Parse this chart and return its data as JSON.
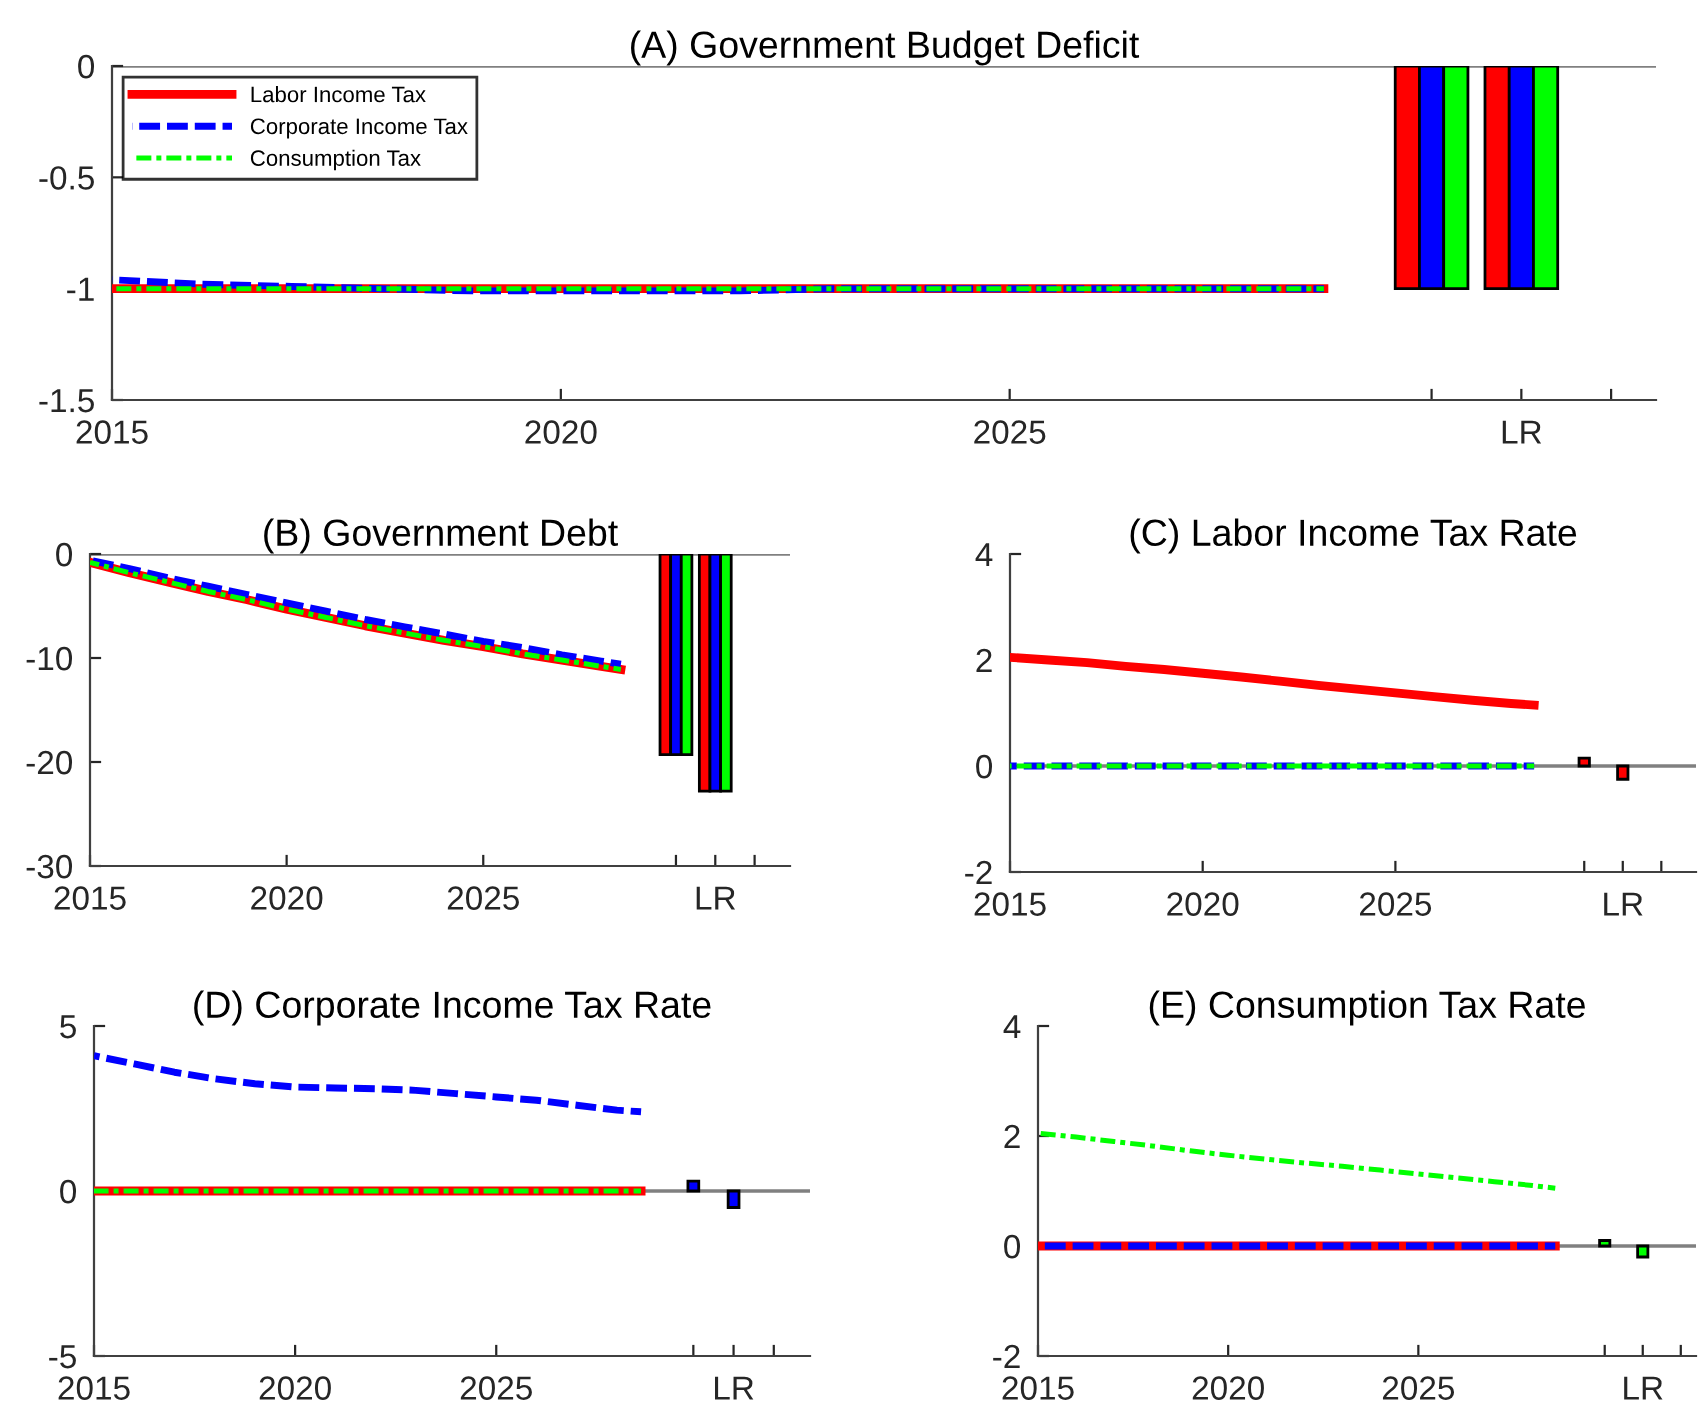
{
  "chart_data": [
    {
      "type": "line",
      "title": "(A) Government Budget Deficit",
      "xlim": [
        2015,
        2032.2
      ],
      "xticks": [
        2015,
        2020,
        2025,
        {
          "value": 2029.7,
          "label": null
        },
        {
          "value": 2030.7,
          "label": "LR"
        },
        {
          "value": 2031.7,
          "label": null
        }
      ],
      "ylim": [
        -1.5,
        0
      ],
      "yticks": [
        -1.5,
        -1,
        -0.5,
        0
      ],
      "legend": "top left",
      "grid": false,
      "ref_lines": [
        {
          "axis": "y",
          "value": 0,
          "color": "#808080"
        }
      ],
      "series": [
        {
          "name": "Labor Income Tax",
          "color": "#ff0000",
          "line_style": "solid",
          "x": [
            2015,
            2016,
            2017,
            2018,
            2019,
            2020,
            2021,
            2022,
            2023,
            2024,
            2025,
            2026,
            2027,
            2028,
            2028.5
          ],
          "values": [
            -1,
            -1,
            -1,
            -1,
            -1,
            -1,
            -1,
            -1,
            -1,
            -1,
            -1,
            -1,
            -1,
            -1,
            -1
          ]
        },
        {
          "name": "Corporate Income Tax",
          "color": "#0000ff",
          "line_style": "dashed",
          "x": [
            2015,
            2016,
            2017,
            2018,
            2019,
            2020,
            2021,
            2022,
            2023,
            2024,
            2025,
            2026,
            2027,
            2028,
            2028.5
          ],
          "values": [
            -0.96,
            -0.98,
            -0.99,
            -1,
            -1.01,
            -1.01,
            -1.01,
            -1.01,
            -1,
            -1,
            -1,
            -1,
            -1,
            -1,
            -1
          ]
        },
        {
          "name": "Consumption Tax",
          "color": "#00ff00",
          "line_style": "dashdot",
          "x": [
            2015,
            2016,
            2017,
            2018,
            2019,
            2020,
            2021,
            2022,
            2023,
            2024,
            2025,
            2026,
            2027,
            2028,
            2028.5
          ],
          "values": [
            -1,
            -1,
            -1,
            -1,
            -1,
            -1,
            -1,
            -1,
            -1,
            -1,
            -1,
            -1,
            -1,
            -1,
            -1
          ]
        },
        {
          "type": "bar",
          "color": "#ff0000",
          "x": [
            2029.43,
            2030.43
          ],
          "values": [
            -1,
            -1
          ]
        },
        {
          "type": "bar",
          "color": "#0000ff",
          "x": [
            2029.7,
            2030.7
          ],
          "values": [
            -1,
            -1
          ]
        },
        {
          "type": "bar",
          "color": "#00ff00",
          "x": [
            2029.97,
            2030.97
          ],
          "values": [
            -1,
            -1
          ]
        }
      ]
    },
    {
      "type": "line",
      "title": "(B) Government Debt",
      "xlim": [
        2015,
        2032.8
      ],
      "xticks": [
        2015,
        2020,
        2025,
        {
          "value": 2029.9,
          "label": null
        },
        {
          "value": 2030.9,
          "label": "LR"
        },
        {
          "value": 2031.9,
          "label": null
        }
      ],
      "ylim": [
        -30,
        0
      ],
      "yticks": [
        -30,
        -20,
        -10,
        0
      ],
      "grid": false,
      "ref_lines": [
        {
          "axis": "y",
          "value": 0,
          "color": "#808080"
        }
      ],
      "series": [
        {
          "color": "#ff0000",
          "line_style": "solid",
          "x": [
            2015,
            2016,
            2017,
            2018,
            2019,
            2020,
            2021,
            2022,
            2023,
            2024,
            2025,
            2026,
            2027,
            2028,
            2028.5
          ],
          "values": [
            -0.8,
            -1.8,
            -2.7,
            -3.6,
            -4.4,
            -5.3,
            -6.1,
            -6.9,
            -7.6,
            -8.3,
            -8.9,
            -9.6,
            -10.2,
            -10.8,
            -11.1
          ]
        },
        {
          "color": "#0000ff",
          "line_style": "dashed",
          "x": [
            2015,
            2016,
            2017,
            2018,
            2019,
            2020,
            2021,
            2022,
            2023,
            2024,
            2025,
            2026,
            2027,
            2028,
            2028.5
          ],
          "values": [
            -0.6,
            -1.4,
            -2.3,
            -3.1,
            -3.9,
            -4.7,
            -5.5,
            -6.3,
            -7,
            -7.7,
            -8.4,
            -9,
            -9.7,
            -10.3,
            -10.6
          ]
        },
        {
          "color": "#00ff00",
          "line_style": "dashdot",
          "x": [
            2015,
            2016,
            2017,
            2018,
            2019,
            2020,
            2021,
            2022,
            2023,
            2024,
            2025,
            2026,
            2027,
            2028,
            2028.5
          ],
          "values": [
            -0.8,
            -1.8,
            -2.7,
            -3.6,
            -4.4,
            -5.3,
            -6.1,
            -6.9,
            -7.6,
            -8.3,
            -8.9,
            -9.6,
            -10.2,
            -10.8,
            -11.1
          ]
        },
        {
          "type": "bar",
          "color": "#ff0000",
          "x": [
            2029.63,
            2030.63
          ],
          "values": [
            -19.3,
            -22.8
          ]
        },
        {
          "type": "bar",
          "color": "#0000ff",
          "x": [
            2029.9,
            2030.9
          ],
          "values": [
            -19.3,
            -22.8
          ]
        },
        {
          "type": "bar",
          "color": "#00ff00",
          "x": [
            2030.17,
            2031.17
          ],
          "values": [
            -19.3,
            -22.8
          ]
        }
      ]
    },
    {
      "type": "line",
      "title": "(C) Labor Income Tax Rate",
      "xlim": [
        2015,
        2032.8
      ],
      "xticks": [
        2015,
        2020,
        2025,
        {
          "value": 2029.9,
          "label": null
        },
        {
          "value": 2030.9,
          "label": "LR"
        },
        {
          "value": 2031.9,
          "label": null
        }
      ],
      "ylim": [
        -2,
        4
      ],
      "yticks": [
        -2,
        0,
        2,
        4
      ],
      "grid": false,
      "ref_lines": [
        {
          "axis": "y",
          "value": 0,
          "color": "#808080"
        }
      ],
      "series": [
        {
          "color": "#ff0000",
          "line_style": "solid",
          "x": [
            2015,
            2016,
            2017,
            2018,
            2019,
            2020,
            2021,
            2022,
            2023,
            2024,
            2025,
            2026,
            2027,
            2028,
            2028.6
          ],
          "values": [
            2.05,
            2,
            1.95,
            1.88,
            1.82,
            1.75,
            1.68,
            1.6,
            1.52,
            1.45,
            1.38,
            1.31,
            1.24,
            1.18,
            1.15
          ]
        },
        {
          "color": "#0000ff",
          "line_style": "dashed",
          "x": [
            2015,
            2028.6
          ],
          "values": [
            0,
            0
          ]
        },
        {
          "color": "#00ff00",
          "line_style": "dashdot",
          "x": [
            2015,
            2028.6
          ],
          "values": [
            0,
            0
          ]
        },
        {
          "type": "bar",
          "color": "#ff0000",
          "x": [
            2029.9,
            2030.9
          ],
          "values": [
            0.15,
            -0.25
          ]
        }
      ]
    },
    {
      "type": "line",
      "title": "(D) Corporate Income Tax Rate",
      "xlim": [
        2015,
        2032.8
      ],
      "xticks": [
        2015,
        2020,
        2025,
        {
          "value": 2029.9,
          "label": null
        },
        {
          "value": 2030.9,
          "label": "LR"
        },
        {
          "value": 2031.9,
          "label": null
        }
      ],
      "ylim": [
        -5,
        5
      ],
      "yticks": [
        -5,
        0,
        5
      ],
      "grid": false,
      "ref_lines": [
        {
          "axis": "y",
          "value": 0,
          "color": "#808080"
        }
      ],
      "series": [
        {
          "color": "#ff0000",
          "line_style": "solid",
          "x": [
            2015,
            2028.6
          ],
          "values": [
            0,
            0
          ]
        },
        {
          "color": "#0000ff",
          "line_style": "dashed",
          "x": [
            2015,
            2016,
            2017,
            2018,
            2019,
            2020,
            2021,
            2022,
            2023,
            2024,
            2025,
            2026,
            2027,
            2028,
            2028.6
          ],
          "values": [
            4.1,
            3.85,
            3.6,
            3.4,
            3.25,
            3.15,
            3.12,
            3.1,
            3.05,
            2.95,
            2.85,
            2.75,
            2.6,
            2.45,
            2.4
          ]
        },
        {
          "color": "#00ff00",
          "line_style": "dashdot",
          "x": [
            2015,
            2028.6
          ],
          "values": [
            0,
            0
          ]
        },
        {
          "type": "bar",
          "color": "#0000ff",
          "x": [
            2029.9,
            2030.9
          ],
          "values": [
            0.3,
            -0.5
          ]
        }
      ]
    },
    {
      "type": "line",
      "title": "(E) Consumption Tax Rate",
      "xlim": [
        2015,
        2032.3
      ],
      "xticks": [
        2015,
        2020,
        2025,
        {
          "value": 2029.9,
          "label": null
        },
        {
          "value": 2030.9,
          "label": "LR"
        },
        {
          "value": 2031.9,
          "label": null
        }
      ],
      "ylim": [
        -2,
        4
      ],
      "yticks": [
        -2,
        0,
        2,
        4
      ],
      "grid": false,
      "ref_lines": [
        {
          "axis": "y",
          "value": 0,
          "color": "#808080"
        }
      ],
      "series": [
        {
          "color": "#ff0000",
          "line_style": "solid",
          "x": [
            2015,
            2028.6
          ],
          "values": [
            0,
            0
          ]
        },
        {
          "color": "#0000ff",
          "line_style": "dashed",
          "x": [
            2015,
            2028.6
          ],
          "values": [
            0,
            0
          ]
        },
        {
          "color": "#00ff00",
          "line_style": "dashdot",
          "x": [
            2015,
            2016,
            2017,
            2018,
            2019,
            2020,
            2021,
            2022,
            2023,
            2024,
            2025,
            2026,
            2027,
            2028,
            2028.6
          ],
          "values": [
            2.05,
            1.98,
            1.9,
            1.82,
            1.73,
            1.65,
            1.58,
            1.51,
            1.45,
            1.38,
            1.31,
            1.24,
            1.17,
            1.1,
            1.05
          ]
        },
        {
          "type": "bar",
          "color": "#00ff00",
          "x": [
            2029.9,
            2030.9
          ],
          "values": [
            0.1,
            -0.2
          ]
        }
      ]
    }
  ]
}
